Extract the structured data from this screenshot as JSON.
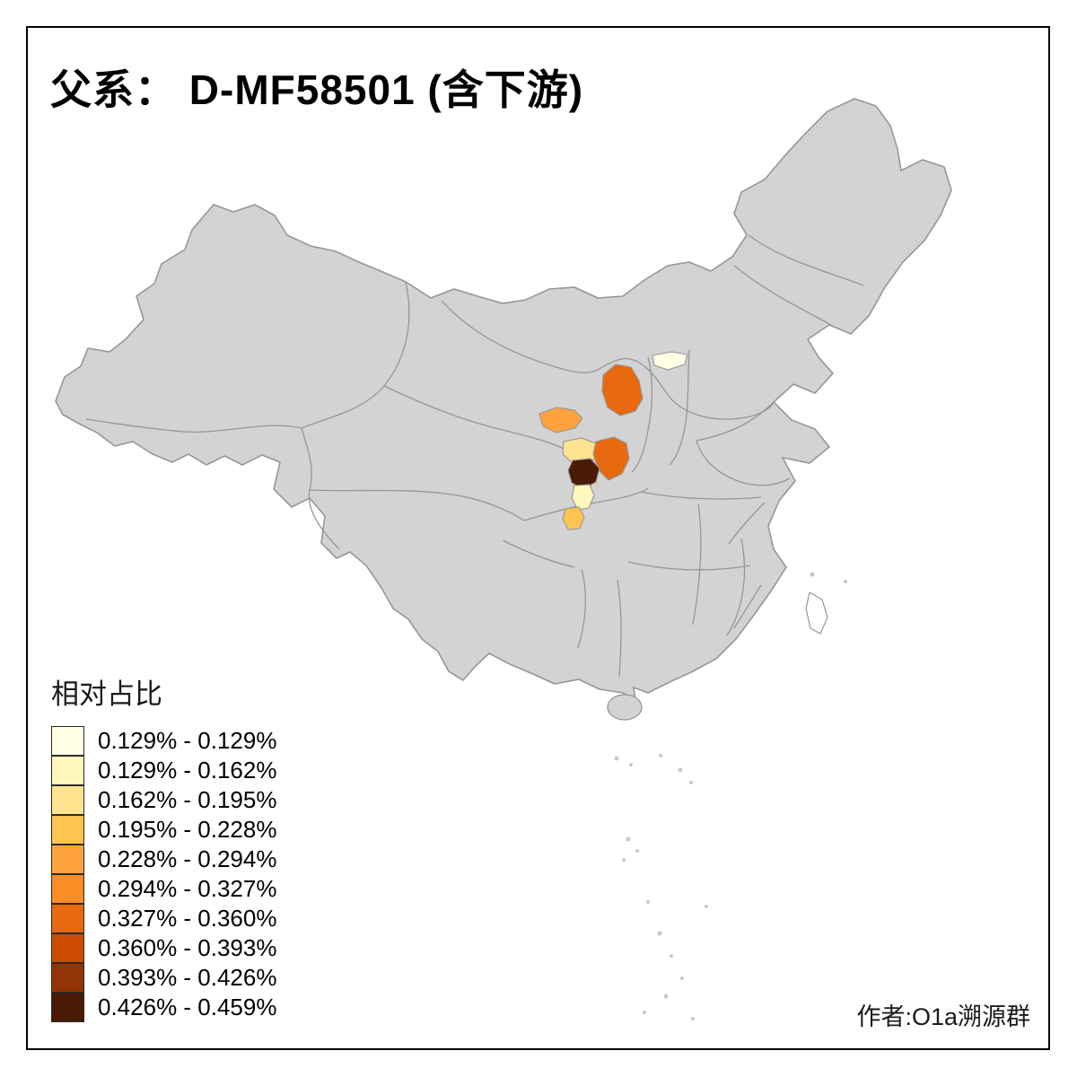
{
  "title": "父系： D-MF58501 (含下游)",
  "credit": "作者:O1a溯源群",
  "legend": {
    "title": "相对占比",
    "classes": [
      {
        "label": "0.129% - 0.129%",
        "color": "#FFFFE5"
      },
      {
        "label": "0.129% - 0.162%",
        "color": "#FFF7BC"
      },
      {
        "label": "0.162% - 0.195%",
        "color": "#FEE391"
      },
      {
        "label": "0.195% - 0.228%",
        "color": "#FEC44F"
      },
      {
        "label": "0.228% - 0.294%",
        "color": "#FEA33E"
      },
      {
        "label": "0.294% - 0.327%",
        "color": "#FB8C26"
      },
      {
        "label": "0.327% - 0.360%",
        "color": "#E8690F"
      },
      {
        "label": "0.360% - 0.393%",
        "color": "#CC4C02"
      },
      {
        "label": "0.393% - 0.426%",
        "color": "#933404"
      },
      {
        "label": "0.426% - 0.459%",
        "color": "#4A1B04"
      }
    ]
  },
  "map": {
    "base_fill": "#D3D3D3",
    "border_color": "#969696",
    "island_fill": "#C8C8C8",
    "taiwan_fill": "#FFFFFF",
    "regions": [
      {
        "name": "map-region-1",
        "class_index": 0
      },
      {
        "name": "map-region-2",
        "class_index": 6
      },
      {
        "name": "map-region-3",
        "class_index": 4
      },
      {
        "name": "map-region-4",
        "class_index": 2
      },
      {
        "name": "map-region-5",
        "class_index": 6
      },
      {
        "name": "map-region-6",
        "class_index": 9
      },
      {
        "name": "map-region-7",
        "class_index": 1
      },
      {
        "name": "map-region-8",
        "class_index": 3
      }
    ]
  }
}
